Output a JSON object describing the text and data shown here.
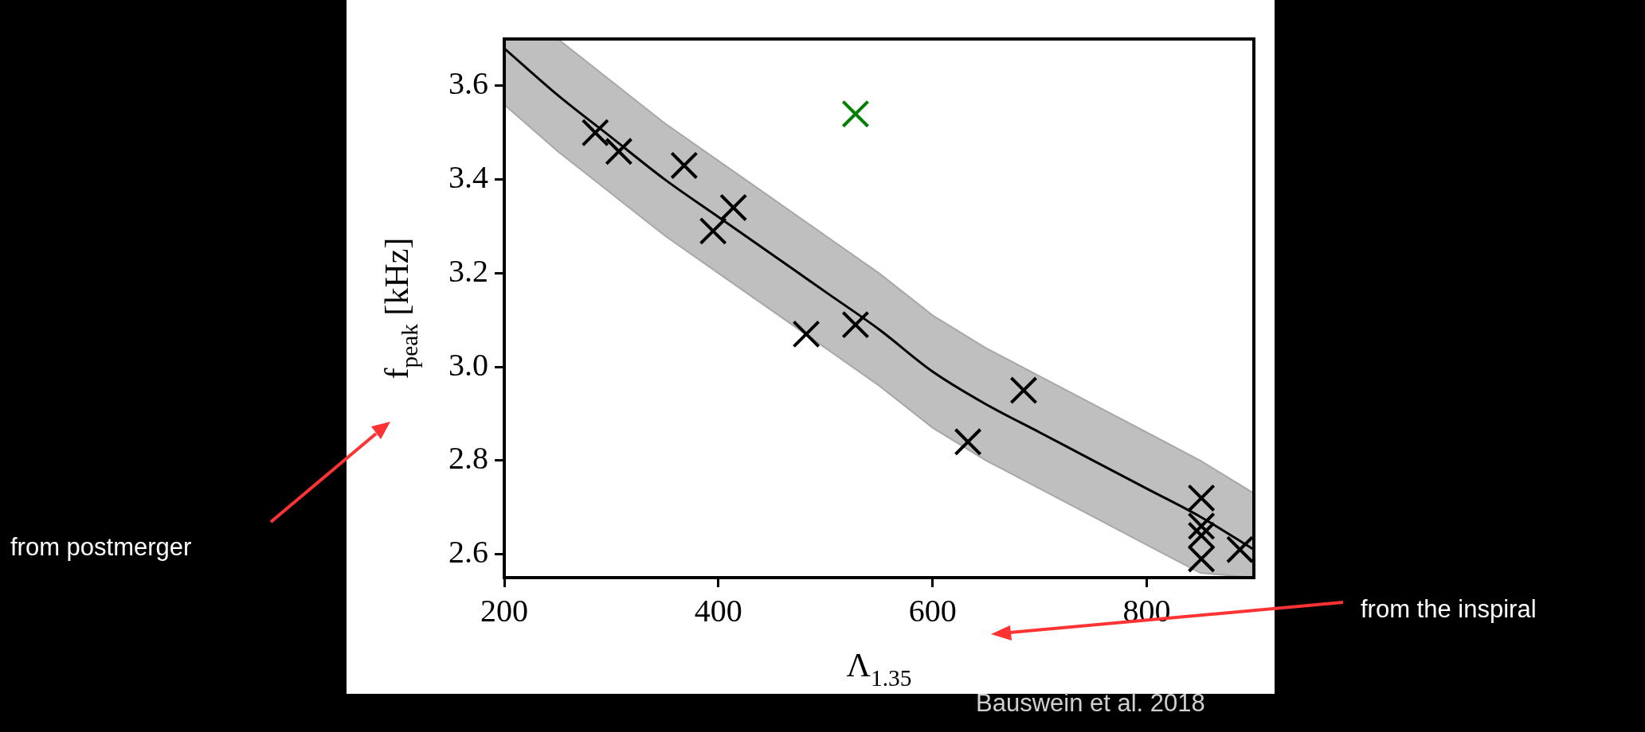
{
  "chart_data": {
    "type": "scatter",
    "xlabel": "Λ$_{1.35}$",
    "ylabel": "f$_{peak}$ [kHz]",
    "xlim": [
      200,
      900
    ],
    "xticks": [
      200,
      400,
      600,
      800
    ],
    "ylim": [
      2.55,
      3.7
    ],
    "yticks": [
      2.6,
      2.8,
      {
        "value": 3.0,
        "label": "3.0"
      },
      3.2,
      3.4,
      3.6
    ],
    "annotations": [
      "from postmerger",
      "from the inspiral",
      "Bauswein et al. 2018"
    ],
    "series": [
      {
        "type": "scatter",
        "color": "#000000",
        "marker": "cross",
        "x": [
          285,
          307,
          368,
          395,
          482,
          528,
          633,
          685,
          851,
          851,
          887
        ],
        "values": [
          3.5,
          3.46,
          3.43,
          3.29,
          3.07,
          3.09,
          2.84,
          2.95,
          2.64,
          2.59,
          2.61
        ]
      },
      {
        "type": "scatter",
        "color": "#000000",
        "marker": "cross",
        "x": [
          414,
          851,
          851
        ],
        "values": [
          3.34,
          2.72,
          2.66
        ]
      },
      {
        "type": "scatter",
        "color": "#008000",
        "marker": "cross",
        "x": [
          528
        ],
        "values": [
          3.54
        ]
      },
      {
        "type": "line",
        "color": "#000000",
        "marker": "none",
        "x": [
          200,
          250,
          300,
          350,
          400,
          450,
          500,
          550,
          600,
          650,
          700,
          750,
          800,
          850,
          900
        ],
        "values": [
          3.68,
          3.58,
          3.49,
          3.4,
          3.32,
          3.24,
          3.16,
          3.08,
          2.99,
          2.92,
          2.86,
          2.8,
          2.74,
          2.68,
          2.61
        ],
        "lower": [
          3.56,
          3.46,
          3.37,
          3.28,
          3.2,
          3.12,
          3.04,
          2.96,
          2.87,
          2.8,
          2.74,
          2.68,
          2.62,
          2.56,
          2.55
        ],
        "upper": [
          3.7,
          3.7,
          3.61,
          3.52,
          3.44,
          3.36,
          3.28,
          3.2,
          3.11,
          3.04,
          2.98,
          2.92,
          2.86,
          2.8,
          2.73
        ]
      }
    ]
  }
}
